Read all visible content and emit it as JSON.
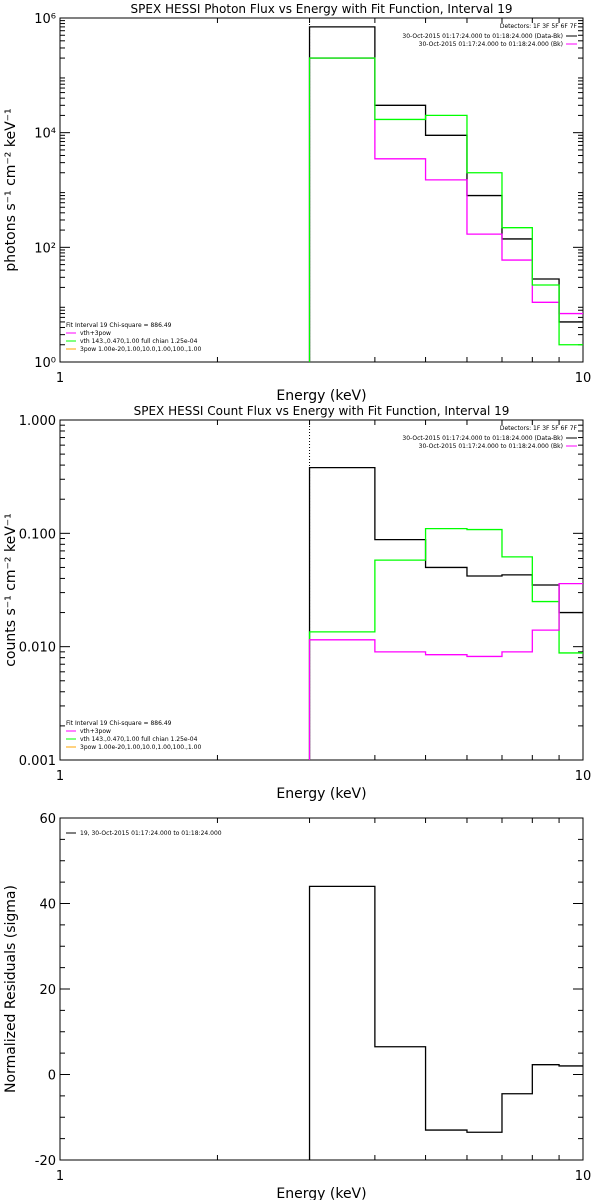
{
  "chart_data": [
    {
      "type": "line",
      "title": "SPEX HESSI Photon Flux vs Energy with Fit Function, Interval 19",
      "xlabel": "Energy (keV)",
      "ylabel": "photons s⁻¹ cm⁻² keV⁻¹",
      "xscale": "log",
      "yscale": "log",
      "xlim": [
        1,
        10
      ],
      "ylim": [
        1,
        1000000
      ],
      "x_ticks": [
        1,
        10
      ],
      "x_tick_labels": [
        "1",
        "10"
      ],
      "y_ticks": [
        1,
        100,
        10000,
        1000000
      ],
      "y_tick_labels": [
        "10⁰",
        "10²",
        "10⁴",
        "10⁶"
      ],
      "bin_edges": [
        3,
        4,
        5,
        6,
        7,
        8,
        9,
        10
      ],
      "series": [
        {
          "name": "",
          "color": "#000000",
          "values": [
            700000,
            30000,
            9000,
            800,
            140,
            28,
            5
          ]
        },
        {
          "name": "vth+3pow",
          "color": "#ff00ff",
          "values": [
            200000,
            3500,
            1500,
            170,
            60,
            11,
            7
          ]
        },
        {
          "name": "vth 143.,0.470,1.00  full chian 1.25e-04",
          "color": "#00ff00",
          "values": [
            200000,
            17000,
            20000,
            2000,
            220,
            22,
            2
          ]
        }
      ],
      "vline_x": 3,
      "legend": {
        "position": "bottom-left",
        "header": "Fit Interval 19    Chi-square = 886.49",
        "entries": [
          {
            "label": "vth+3pow",
            "color": "#ff00ff"
          },
          {
            "label": "vth 143.,0.470,1.00  full chian 1.25e-04",
            "color": "#00ff00"
          },
          {
            "label": "3pow 1.00e-20,1.00,10.0,1.00,100.,1.00",
            "color": "#ffa500"
          }
        ]
      },
      "info": {
        "position": "top-right",
        "detectors": "Detectors: 1F 3F 5F 6F 7F",
        "lines": [
          {
            "text": "30-Oct-2015 01:17:24.000 to 01:18:24.000 (Data-Bk)",
            "color": "#000000"
          },
          {
            "text": "30-Oct-2015 01:17:24.000 to 01:18:24.000 (Bk)",
            "color": "#ff00ff"
          }
        ]
      }
    },
    {
      "type": "line",
      "title": "SPEX HESSI Count Flux vs Energy with Fit Function, Interval 19",
      "xlabel": "Energy (keV)",
      "ylabel": "counts s⁻¹ cm⁻² keV⁻¹",
      "xscale": "log",
      "yscale": "log",
      "xlim": [
        1,
        10
      ],
      "ylim": [
        0.001,
        1
      ],
      "x_ticks": [
        1,
        10
      ],
      "x_tick_labels": [
        "1",
        "10"
      ],
      "y_ticks": [
        0.001,
        0.01,
        0.1,
        1
      ],
      "y_tick_labels": [
        "0.001",
        "0.010",
        "0.100",
        "1.000"
      ],
      "bin_edges": [
        3,
        4,
        5,
        6,
        7,
        8,
        9,
        10
      ],
      "series": [
        {
          "name": "",
          "color": "#000000",
          "values": [
            0.38,
            0.088,
            0.05,
            0.042,
            0.043,
            0.035,
            0.02
          ]
        },
        {
          "name": "vth 143.,0.470,1.00  full chian 1.25e-04",
          "color": "#00ff00",
          "values": [
            0.0135,
            0.058,
            0.11,
            0.108,
            0.062,
            0.025,
            0.0088
          ]
        },
        {
          "name": "vth+3pow",
          "color": "#ff00ff",
          "values": [
            0.0115,
            0.009,
            0.0085,
            0.0082,
            0.009,
            0.014,
            0.036
          ]
        }
      ],
      "vline_x": 3,
      "legend": {
        "position": "bottom-left",
        "header": "Fit Interval 19    Chi-square = 886.49",
        "entries": [
          {
            "label": "vth+3pow",
            "color": "#ff00ff"
          },
          {
            "label": "vth 143.,0.470,1.00  full chian 1.25e-04",
            "color": "#00ff00"
          },
          {
            "label": "3pow 1.00e-20,1.00,10.0,1.00,100.,1.00",
            "color": "#ffa500"
          }
        ]
      },
      "info": {
        "position": "top-right",
        "detectors": "Detectors: 1F 3F 5F 6F 7F",
        "lines": [
          {
            "text": "30-Oct-2015 01:17:24.000 to 01:18:24.000 (Data-Bk)",
            "color": "#000000"
          },
          {
            "text": "30-Oct-2015 01:17:24.000 to 01:18:24.000 (Bk)",
            "color": "#ff00ff"
          }
        ]
      }
    },
    {
      "type": "line",
      "title": "",
      "xlabel": "Energy (keV)",
      "ylabel": "Normalized Residuals (sigma)",
      "xscale": "log",
      "yscale": "linear",
      "xlim": [
        1,
        10
      ],
      "ylim": [
        -20,
        60
      ],
      "x_ticks": [
        1,
        10
      ],
      "x_tick_labels": [
        "1",
        "10"
      ],
      "y_ticks": [
        -20,
        0,
        20,
        40,
        60
      ],
      "y_tick_labels": [
        "-20",
        "0",
        "20",
        "40",
        "60"
      ],
      "bin_edges": [
        3,
        4,
        5,
        6,
        7,
        8,
        9,
        10
      ],
      "series": [
        {
          "name": "19, 30-Oct-2015 01:17:24.000 to 01:18:24.000",
          "color": "#000000",
          "values": [
            44,
            6.5,
            -13,
            -13.5,
            -4.5,
            2.3,
            2
          ]
        }
      ],
      "legend": {
        "position": "top-left",
        "entries": [
          {
            "label": "19, 30-Oct-2015 01:17:24.000 to 01:18:24.000",
            "color": "#000000"
          }
        ]
      }
    }
  ]
}
